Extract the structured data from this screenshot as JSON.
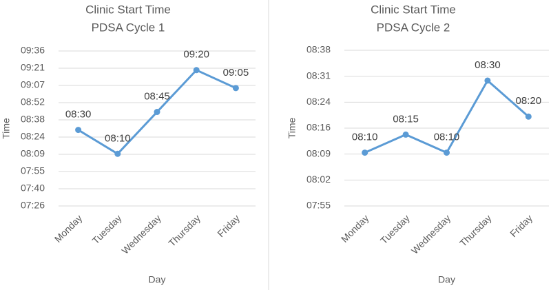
{
  "chart_data": [
    {
      "type": "line",
      "title": "Clinic Start Time",
      "subtitle": "PDSA Cycle 1",
      "x_label": "Day",
      "y_label": "Time",
      "categories": [
        "Monday",
        "Tuesday",
        "Wednesday",
        "Thursday",
        "Friday"
      ],
      "series": [
        {
          "color": "#5b9bd5",
          "values": [
            510,
            490,
            525,
            560,
            545
          ],
          "value_labels": [
            "08:30",
            "08:10",
            "08:45",
            "09:20",
            "09:05"
          ]
        }
      ],
      "ylim": [
        446.4,
        576
      ],
      "yticks": [
        {
          "value": 446.4,
          "label": "07:26"
        },
        {
          "value": 460.8,
          "label": "07:40"
        },
        {
          "value": 475.2,
          "label": "07:55"
        },
        {
          "value": 489.6,
          "label": "08:09"
        },
        {
          "value": 504,
          "label": "08:24"
        },
        {
          "value": 518.4,
          "label": "08:38"
        },
        {
          "value": 532.8,
          "label": "08:52"
        },
        {
          "value": 547.2,
          "label": "09:07"
        },
        {
          "value": 561.6,
          "label": "09:21"
        },
        {
          "value": 576,
          "label": "09:36"
        }
      ],
      "grid": true
    },
    {
      "type": "line",
      "title": "Clinic Start Time",
      "subtitle": "PDSA Cycle 2",
      "x_label": "Day",
      "y_label": "Time",
      "categories": [
        "Monday",
        "Tuesday",
        "Wednesday",
        "Thursday",
        "Friday"
      ],
      "series": [
        {
          "color": "#5b9bd5",
          "values": [
            490,
            495,
            490,
            510,
            500
          ],
          "value_labels": [
            "08:10",
            "08:15",
            "08:10",
            "08:30",
            "08:20"
          ]
        }
      ],
      "ylim": [
        475.2,
        518.4
      ],
      "yticks": [
        {
          "value": 475.2,
          "label": "07:55"
        },
        {
          "value": 482.4,
          "label": "08:02"
        },
        {
          "value": 489.6,
          "label": "08:09"
        },
        {
          "value": 496.8,
          "label": "08:16"
        },
        {
          "value": 504,
          "label": "08:24"
        },
        {
          "value": 511.2,
          "label": "08:31"
        },
        {
          "value": 518.4,
          "label": "08:38"
        }
      ],
      "grid": true
    }
  ]
}
